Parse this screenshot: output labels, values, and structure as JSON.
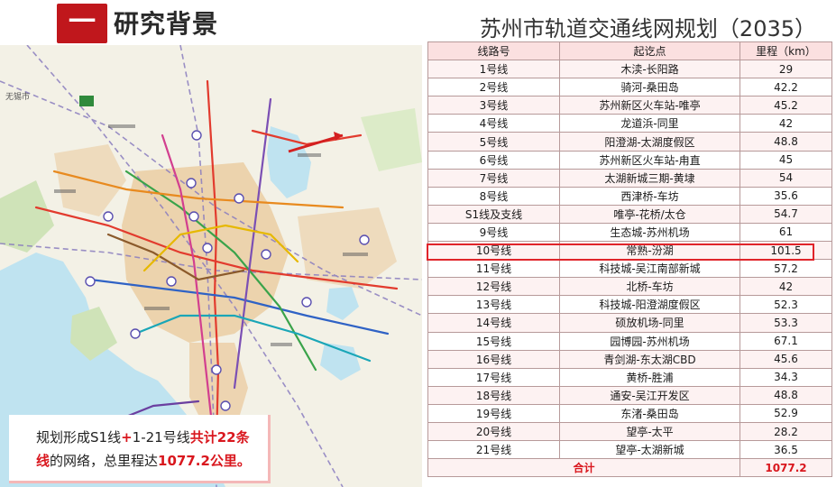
{
  "header": {
    "section_number": "一",
    "section_title": "研究背景",
    "plan_title": "苏州市轨道交通线网规划（2035）"
  },
  "callout": {
    "t1": "规划形成S1线",
    "t2": "+",
    "t3": "1-21号线",
    "t4": "共计22条",
    "t5": "线",
    "t6": "的网络，总里程达",
    "t7": "1077.2公里。"
  },
  "table": {
    "headers": [
      "线路号",
      "起讫点",
      "里程（km）"
    ],
    "rows": [
      [
        "1号线",
        "木渎-长阳路",
        "29"
      ],
      [
        "2号线",
        "骑河-桑田岛",
        "42.2"
      ],
      [
        "3号线",
        "苏州新区火车站-唯亭",
        "45.2"
      ],
      [
        "4号线",
        "龙道浜-同里",
        "42"
      ],
      [
        "5号线",
        "阳澄湖-太湖度假区",
        "48.8"
      ],
      [
        "6号线",
        "苏州新区火车站-甪直",
        "45"
      ],
      [
        "7号线",
        "太湖新城三期-黄埭",
        "54"
      ],
      [
        "8号线",
        "西津桥-车坊",
        "35.6"
      ],
      [
        "S1线及支线",
        "唯亭-花桥/太仓",
        "54.7"
      ],
      [
        "9号线",
        "生态城-苏州机场",
        "61"
      ],
      [
        "10号线",
        "常熟-汾湖",
        "101.5"
      ],
      [
        "11号线",
        "科技城-吴江南部新城",
        "57.2"
      ],
      [
        "12号线",
        "北桥-车坊",
        "42"
      ],
      [
        "13号线",
        "科技城-阳澄湖度假区",
        "52.3"
      ],
      [
        "14号线",
        "硕放机场-同里",
        "53.3"
      ],
      [
        "15号线",
        "园博园-苏州机场",
        "67.1"
      ],
      [
        "16号线",
        "青剑湖-东太湖CBD",
        "45.6"
      ],
      [
        "17号线",
        "黄桥-胜浦",
        "34.3"
      ],
      [
        "18号线",
        "通安-吴江开发区",
        "48.8"
      ],
      [
        "19号线",
        "东渚-桑田岛",
        "52.9"
      ],
      [
        "20号线",
        "望亭-太平",
        "28.2"
      ],
      [
        "21号线",
        "望亭-太湖新城",
        "36.5"
      ]
    ],
    "total_label": "合计",
    "total_value": "1077.2"
  },
  "map": {
    "labels": {
      "wuxi": "无锡市"
    }
  },
  "colors": {
    "accent": "#c0171c",
    "highlight": "#e0242a"
  }
}
